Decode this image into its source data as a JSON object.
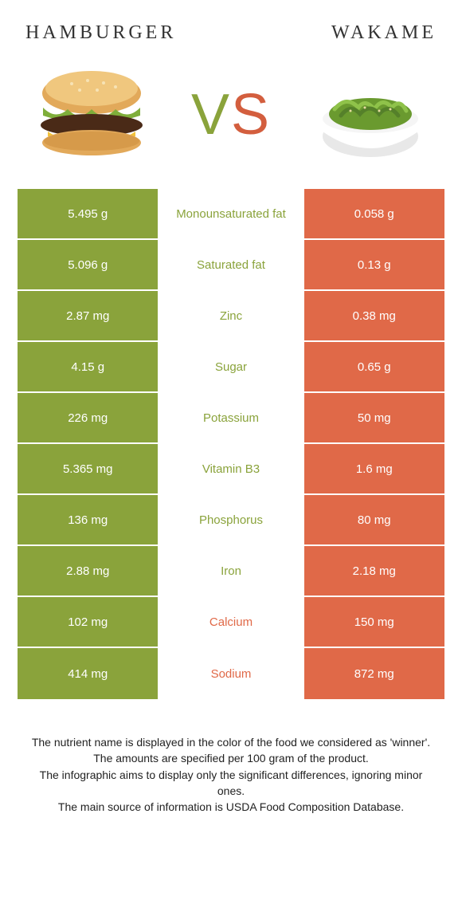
{
  "titles": {
    "left": "HAMBURGER",
    "right": "WAKAME"
  },
  "vs": {
    "v": "V",
    "s": "S"
  },
  "colors": {
    "green": "#8aa33b",
    "orange": "#e06948",
    "mid_green_text": "#8aa33b",
    "mid_orange_text": "#e06948"
  },
  "rows": [
    {
      "left": "5.495 g",
      "label": "Monounsaturated fat",
      "right": "0.058 g",
      "winner": "left"
    },
    {
      "left": "5.096 g",
      "label": "Saturated fat",
      "right": "0.13 g",
      "winner": "left"
    },
    {
      "left": "2.87 mg",
      "label": "Zinc",
      "right": "0.38 mg",
      "winner": "left"
    },
    {
      "left": "4.15 g",
      "label": "Sugar",
      "right": "0.65 g",
      "winner": "left"
    },
    {
      "left": "226 mg",
      "label": "Potassium",
      "right": "50 mg",
      "winner": "left"
    },
    {
      "left": "5.365 mg",
      "label": "Vitamin B3",
      "right": "1.6 mg",
      "winner": "left"
    },
    {
      "left": "136 mg",
      "label": "Phosphorus",
      "right": "80 mg",
      "winner": "left"
    },
    {
      "left": "2.88 mg",
      "label": "Iron",
      "right": "2.18 mg",
      "winner": "left"
    },
    {
      "left": "102 mg",
      "label": "Calcium",
      "right": "150 mg",
      "winner": "right"
    },
    {
      "left": "414 mg",
      "label": "Sodium",
      "right": "872 mg",
      "winner": "right"
    }
  ],
  "footnotes": [
    "The nutrient name is displayed in the color of the food we considered as 'winner'.",
    "The amounts are specified per 100 gram of the product.",
    "The infographic aims to display only the significant differences, ignoring minor ones.",
    "The main source of information is USDA Food Composition Database."
  ]
}
